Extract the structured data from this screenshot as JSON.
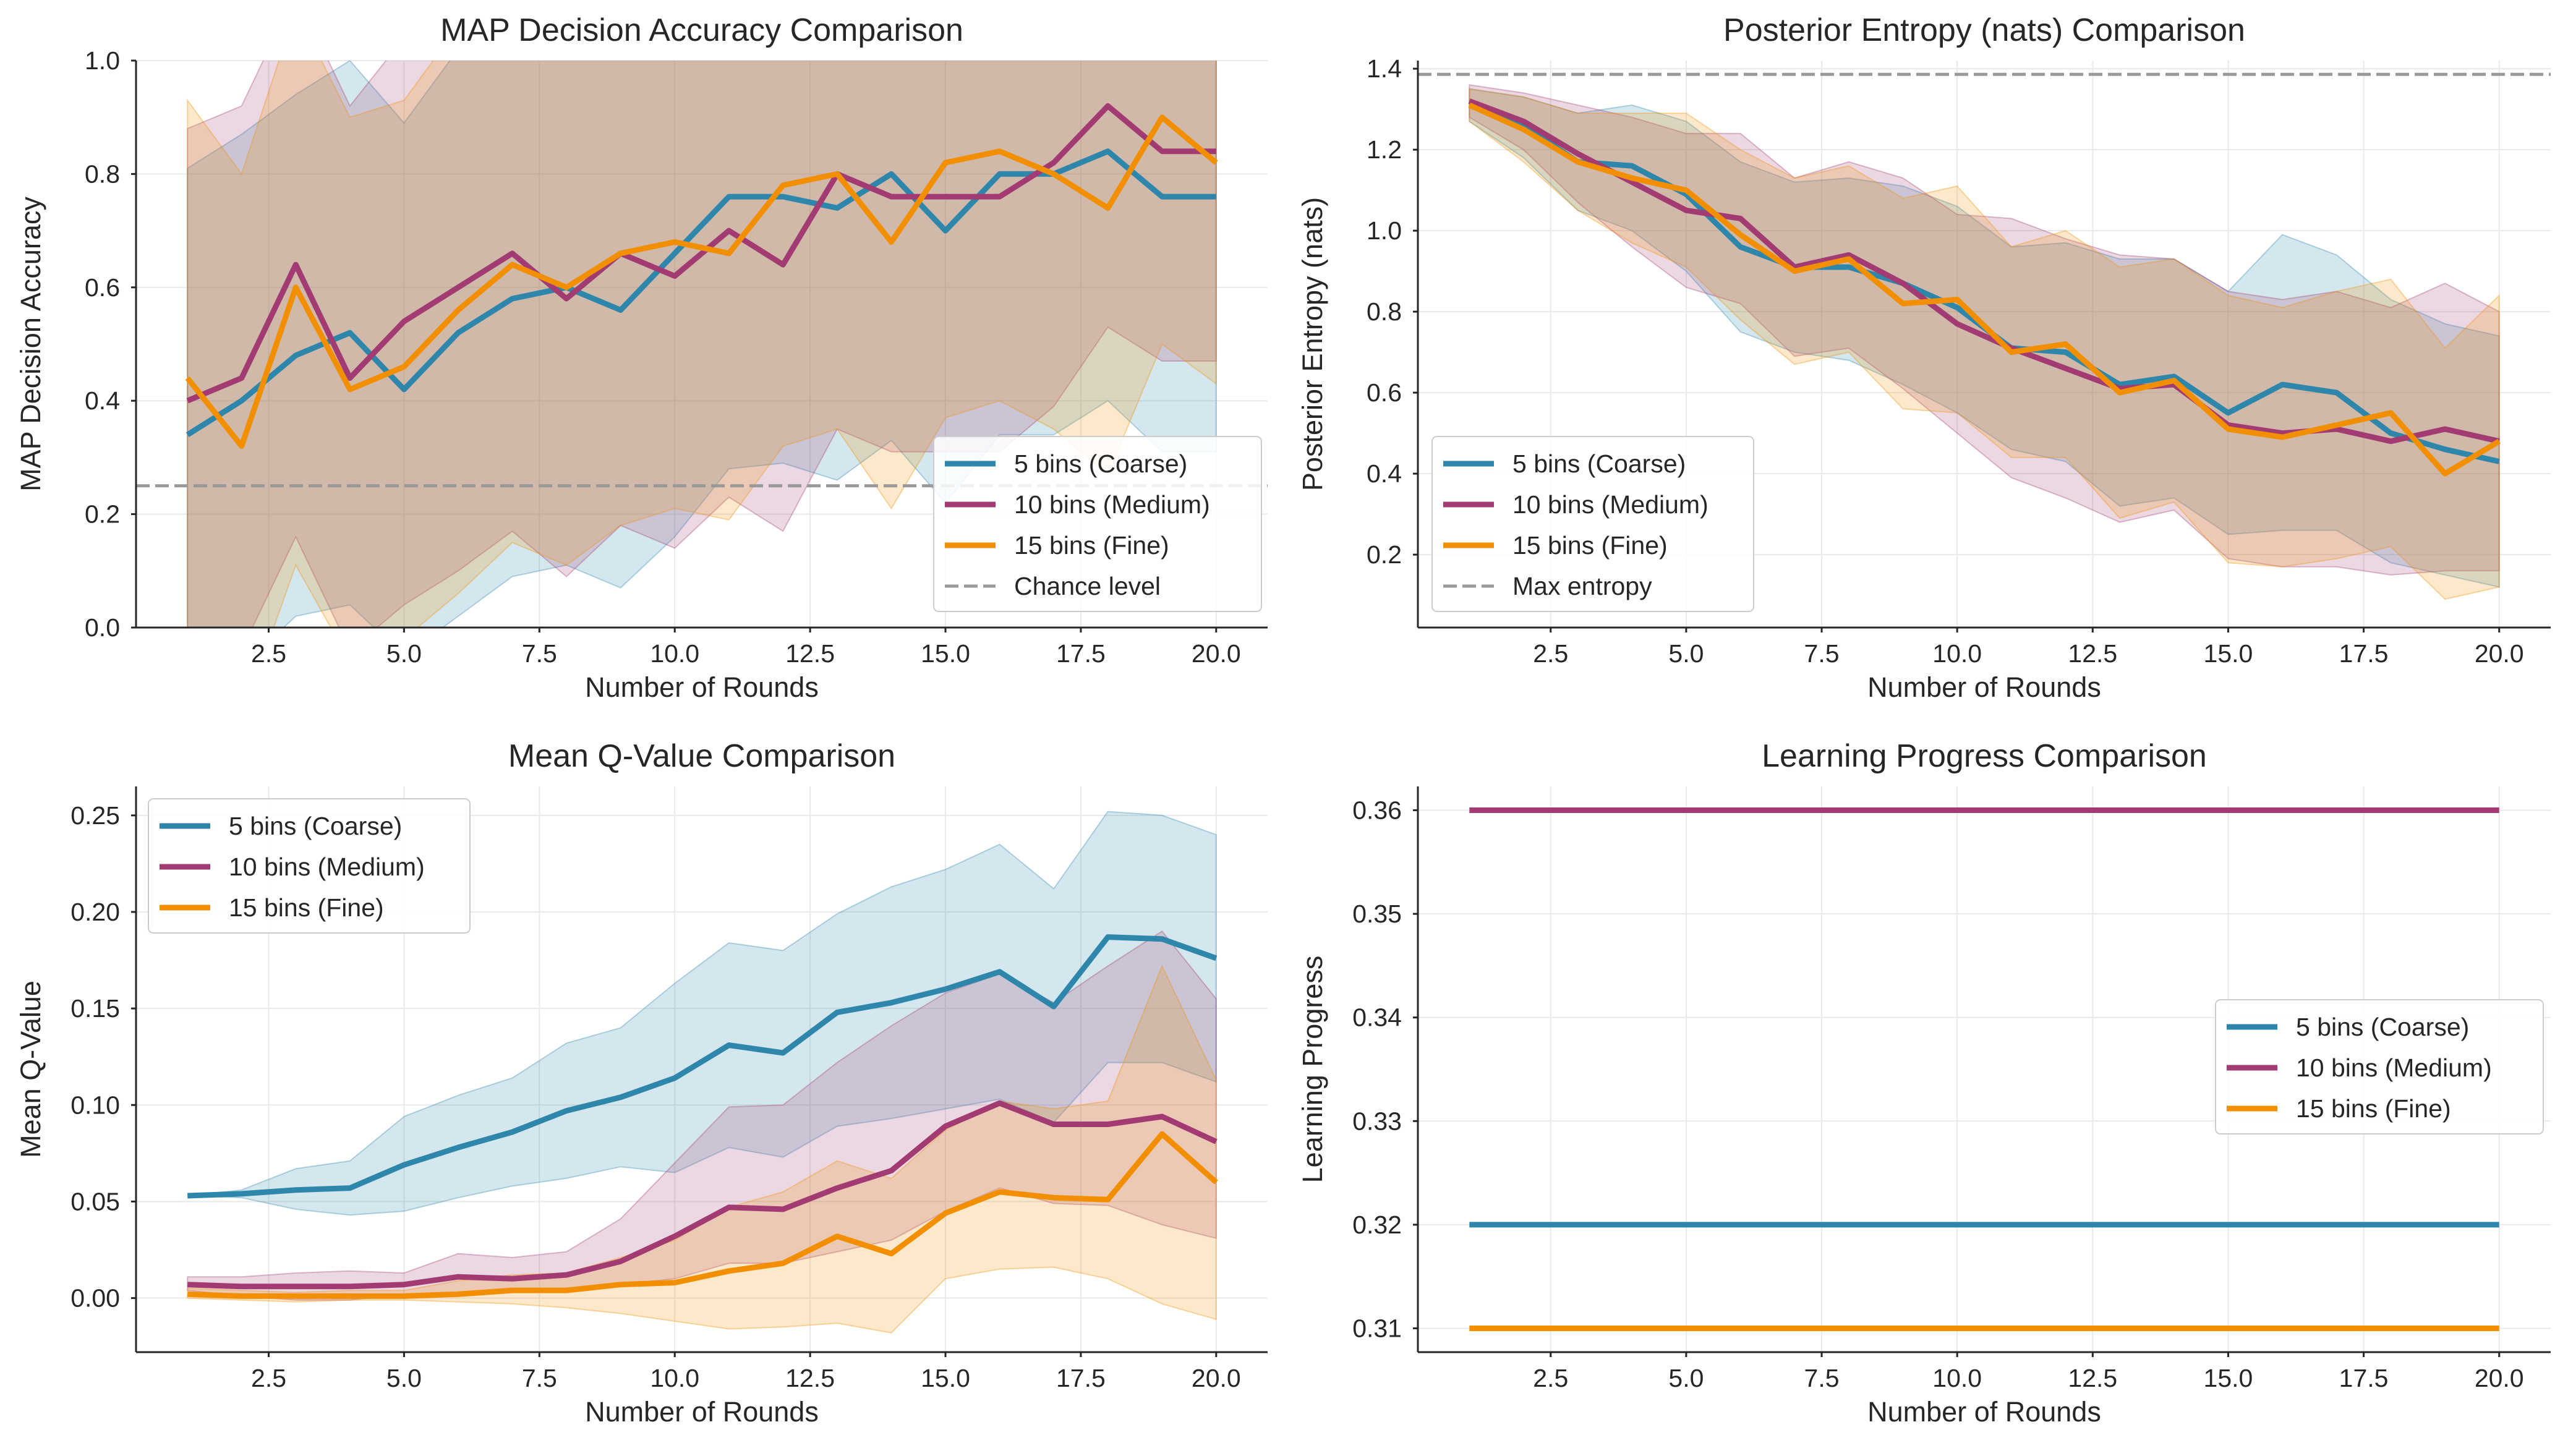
{
  "x_values": [
    1,
    2,
    3,
    4,
    5,
    6,
    7,
    8,
    9,
    10,
    11,
    12,
    13,
    14,
    15,
    16,
    17,
    18,
    19,
    20
  ],
  "series_colors": {
    "coarse": "#2e86ab",
    "medium": "#a23b72",
    "fine": "#f18f01"
  },
  "chart_data": [
    {
      "type": "line",
      "title": "MAP Decision Accuracy Comparison",
      "xlabel": "Number of Rounds",
      "ylabel": "MAP Decision Accuracy",
      "xlim": [
        0.05,
        20.95
      ],
      "ylim": [
        0.0,
        1.0
      ],
      "xticks": [
        "2.5",
        "5.0",
        "7.5",
        "10.0",
        "12.5",
        "15.0",
        "17.5",
        "20.0"
      ],
      "yticks": [
        "0.0",
        "0.2",
        "0.4",
        "0.6",
        "0.8",
        "1.0"
      ],
      "grid": true,
      "legend_position": "lower-right",
      "series": [
        {
          "name": "5 bins (Coarse)",
          "key": "coarse",
          "values": [
            0.34,
            0.4,
            0.48,
            0.52,
            0.42,
            0.52,
            0.58,
            0.6,
            0.56,
            0.66,
            0.76,
            0.76,
            0.74,
            0.8,
            0.7,
            0.8,
            0.8,
            0.84,
            0.76,
            0.76
          ],
          "lower": [
            -0.13,
            -0.07,
            0.02,
            0.04,
            -0.05,
            0.02,
            0.09,
            0.11,
            0.07,
            0.16,
            0.28,
            0.29,
            0.26,
            0.33,
            0.22,
            0.34,
            0.34,
            0.4,
            0.31,
            0.31
          ],
          "upper": [
            0.81,
            0.87,
            0.94,
            1.0,
            0.89,
            1.02,
            1.07,
            1.09,
            1.05,
            1.16,
            1.24,
            1.23,
            1.22,
            1.27,
            1.18,
            1.26,
            1.26,
            1.28,
            1.21,
            1.21
          ]
        },
        {
          "name": "10 bins (Medium)",
          "key": "medium",
          "values": [
            0.4,
            0.44,
            0.64,
            0.44,
            0.54,
            0.6,
            0.66,
            0.58,
            0.66,
            0.62,
            0.7,
            0.64,
            0.8,
            0.76,
            0.76,
            0.76,
            0.82,
            0.92,
            0.84,
            0.84
          ],
          "lower": [
            -0.08,
            -0.04,
            0.16,
            -0.04,
            0.04,
            0.1,
            0.17,
            0.09,
            0.18,
            0.14,
            0.23,
            0.17,
            0.35,
            0.31,
            0.31,
            0.31,
            0.39,
            0.53,
            0.47,
            0.47
          ],
          "upper": [
            0.88,
            0.92,
            1.12,
            0.92,
            1.04,
            1.1,
            1.15,
            1.07,
            1.14,
            1.1,
            1.17,
            1.11,
            1.25,
            1.21,
            1.21,
            1.21,
            1.25,
            1.31,
            1.21,
            1.21
          ]
        },
        {
          "name": "15 bins (Fine)",
          "key": "fine",
          "values": [
            0.44,
            0.32,
            0.6,
            0.42,
            0.46,
            0.56,
            0.64,
            0.6,
            0.66,
            0.68,
            0.66,
            0.78,
            0.8,
            0.68,
            0.82,
            0.84,
            0.8,
            0.74,
            0.9,
            0.82
          ],
          "lower": [
            -0.04,
            -0.16,
            0.11,
            -0.06,
            -0.02,
            0.06,
            0.15,
            0.11,
            0.18,
            0.21,
            0.19,
            0.32,
            0.35,
            0.21,
            0.37,
            0.4,
            0.35,
            0.27,
            0.5,
            0.43
          ],
          "upper": [
            0.93,
            0.8,
            1.09,
            0.9,
            0.93,
            1.06,
            1.13,
            1.09,
            1.14,
            1.15,
            1.13,
            1.24,
            1.25,
            1.15,
            1.27,
            1.28,
            1.25,
            1.21,
            1.3,
            1.21
          ]
        }
      ],
      "reference_line": {
        "name": "Chance level",
        "y": 0.25
      }
    },
    {
      "type": "line",
      "title": "Posterior Entropy (nats) Comparison",
      "xlabel": "Number of Rounds",
      "ylabel": "Posterior Entropy (nats)",
      "xlim": [
        0.05,
        20.95
      ],
      "ylim": [
        0.02,
        1.42
      ],
      "xticks": [
        "2.5",
        "5.0",
        "7.5",
        "10.0",
        "12.5",
        "15.0",
        "17.5",
        "20.0"
      ],
      "yticks": [
        "0.2",
        "0.4",
        "0.6",
        "0.8",
        "1.0",
        "1.2",
        "1.4"
      ],
      "grid": true,
      "legend_position": "lower-left",
      "series": [
        {
          "name": "5 bins (Coarse)",
          "key": "coarse",
          "values": [
            1.31,
            1.26,
            1.17,
            1.16,
            1.09,
            0.96,
            0.91,
            0.91,
            0.87,
            0.81,
            0.71,
            0.7,
            0.62,
            0.64,
            0.55,
            0.62,
            0.6,
            0.5,
            0.46,
            0.43
          ],
          "lower": [
            1.27,
            1.18,
            1.05,
            1.0,
            0.9,
            0.75,
            0.7,
            0.68,
            0.62,
            0.55,
            0.46,
            0.43,
            0.32,
            0.34,
            0.25,
            0.26,
            0.26,
            0.18,
            0.15,
            0.12
          ],
          "upper": [
            1.35,
            1.33,
            1.29,
            1.31,
            1.27,
            1.17,
            1.12,
            1.13,
            1.11,
            1.06,
            0.96,
            0.97,
            0.93,
            0.93,
            0.85,
            0.99,
            0.94,
            0.83,
            0.77,
            0.74
          ]
        },
        {
          "name": "10 bins (Medium)",
          "key": "medium",
          "values": [
            1.32,
            1.27,
            1.19,
            1.12,
            1.05,
            1.03,
            0.91,
            0.94,
            0.87,
            0.77,
            0.71,
            0.66,
            0.61,
            0.62,
            0.52,
            0.5,
            0.51,
            0.48,
            0.51,
            0.48
          ],
          "lower": [
            1.28,
            1.2,
            1.07,
            0.96,
            0.86,
            0.82,
            0.69,
            0.71,
            0.61,
            0.5,
            0.39,
            0.34,
            0.28,
            0.31,
            0.19,
            0.17,
            0.17,
            0.15,
            0.16,
            0.16
          ],
          "upper": [
            1.36,
            1.34,
            1.31,
            1.28,
            1.24,
            1.24,
            1.13,
            1.17,
            1.13,
            1.04,
            1.03,
            0.98,
            0.94,
            0.93,
            0.85,
            0.83,
            0.85,
            0.81,
            0.87,
            0.8
          ]
        },
        {
          "name": "15 bins (Fine)",
          "key": "fine",
          "values": [
            1.31,
            1.25,
            1.17,
            1.13,
            1.1,
            0.99,
            0.9,
            0.93,
            0.82,
            0.83,
            0.7,
            0.72,
            0.6,
            0.63,
            0.51,
            0.49,
            0.52,
            0.55,
            0.4,
            0.48
          ],
          "lower": [
            1.27,
            1.17,
            1.05,
            0.97,
            0.91,
            0.78,
            0.67,
            0.7,
            0.56,
            0.55,
            0.44,
            0.44,
            0.29,
            0.33,
            0.18,
            0.17,
            0.19,
            0.22,
            0.09,
            0.12
          ],
          "upper": [
            1.35,
            1.33,
            1.29,
            1.29,
            1.29,
            1.2,
            1.13,
            1.16,
            1.08,
            1.11,
            0.96,
            1.0,
            0.91,
            0.93,
            0.84,
            0.81,
            0.85,
            0.88,
            0.71,
            0.84
          ]
        }
      ],
      "reference_line": {
        "name": "Max entropy",
        "y": 1.386
      }
    },
    {
      "type": "line",
      "title": "Mean Q-Value Comparison",
      "xlabel": "Number of Rounds",
      "ylabel": "Mean Q-Value",
      "xlim": [
        0.05,
        20.95
      ],
      "ylim": [
        -0.028,
        0.265
      ],
      "xticks": [
        "2.5",
        "5.0",
        "7.5",
        "10.0",
        "12.5",
        "15.0",
        "17.5",
        "20.0"
      ],
      "yticks": [
        "0.00",
        "0.05",
        "0.10",
        "0.15",
        "0.20",
        "0.25"
      ],
      "grid": true,
      "legend_position": "upper-left",
      "series": [
        {
          "name": "5 bins (Coarse)",
          "key": "coarse",
          "values": [
            0.053,
            0.054,
            0.056,
            0.057,
            0.069,
            0.078,
            0.086,
            0.097,
            0.104,
            0.114,
            0.131,
            0.127,
            0.148,
            0.153,
            0.16,
            0.169,
            0.151,
            0.187,
            0.186,
            0.176
          ],
          "lower": [
            0.053,
            0.052,
            0.046,
            0.043,
            0.045,
            0.052,
            0.058,
            0.062,
            0.068,
            0.065,
            0.078,
            0.073,
            0.089,
            0.093,
            0.098,
            0.103,
            0.091,
            0.122,
            0.122,
            0.112
          ],
          "upper": [
            0.053,
            0.056,
            0.067,
            0.071,
            0.094,
            0.105,
            0.114,
            0.132,
            0.14,
            0.163,
            0.184,
            0.18,
            0.199,
            0.213,
            0.222,
            0.235,
            0.212,
            0.252,
            0.25,
            0.24
          ]
        },
        {
          "name": "10 bins (Medium)",
          "key": "medium",
          "values": [
            0.007,
            0.006,
            0.006,
            0.006,
            0.007,
            0.011,
            0.01,
            0.012,
            0.019,
            0.032,
            0.047,
            0.046,
            0.057,
            0.066,
            0.089,
            0.101,
            0.09,
            0.09,
            0.094,
            0.081
          ],
          "lower": [
            0.004,
            0.001,
            -0.001,
            -0.001,
            0.002,
            0.003,
            0.004,
            0.003,
            0.007,
            0.01,
            0.018,
            0.018,
            0.024,
            0.03,
            0.045,
            0.057,
            0.049,
            0.048,
            0.038,
            0.031
          ],
          "upper": [
            0.011,
            0.011,
            0.013,
            0.014,
            0.013,
            0.023,
            0.021,
            0.024,
            0.041,
            0.07,
            0.099,
            0.1,
            0.122,
            0.141,
            0.158,
            0.168,
            0.153,
            0.172,
            0.19,
            0.155
          ]
        },
        {
          "name": "15 bins (Fine)",
          "key": "fine",
          "values": [
            0.002,
            0.001,
            0.001,
            0.001,
            0.001,
            0.002,
            0.004,
            0.004,
            0.007,
            0.008,
            0.014,
            0.018,
            0.032,
            0.023,
            0.044,
            0.055,
            0.052,
            0.051,
            0.085,
            0.06
          ],
          "lower": [
            0.0,
            -0.001,
            -0.002,
            -0.001,
            -0.001,
            -0.002,
            -0.003,
            -0.005,
            -0.008,
            -0.012,
            -0.016,
            -0.015,
            -0.013,
            -0.018,
            0.01,
            0.015,
            0.016,
            0.01,
            -0.003,
            -0.011
          ],
          "upper": [
            0.005,
            0.004,
            0.003,
            0.004,
            0.004,
            0.009,
            0.012,
            0.013,
            0.021,
            0.03,
            0.047,
            0.055,
            0.071,
            0.062,
            0.087,
            0.102,
            0.098,
            0.102,
            0.172,
            0.113
          ]
        }
      ]
    },
    {
      "type": "line",
      "title": "Learning Progress Comparison",
      "xlabel": "Number of Rounds",
      "ylabel": "Learning Progress",
      "xlim": [
        0.05,
        20.95
      ],
      "ylim": [
        0.3077,
        0.3623
      ],
      "xticks": [
        "2.5",
        "5.0",
        "7.5",
        "10.0",
        "12.5",
        "15.0",
        "17.5",
        "20.0"
      ],
      "yticks": [
        "0.31",
        "0.32",
        "0.33",
        "0.34",
        "0.35",
        "0.36"
      ],
      "grid": true,
      "legend_position": "center-right",
      "series": [
        {
          "name": "5 bins (Coarse)",
          "key": "coarse",
          "values": [
            0.32,
            0.32,
            0.32,
            0.32,
            0.32,
            0.32,
            0.32,
            0.32,
            0.32,
            0.32,
            0.32,
            0.32,
            0.32,
            0.32,
            0.32,
            0.32,
            0.32,
            0.32,
            0.32,
            0.32
          ]
        },
        {
          "name": "10 bins (Medium)",
          "key": "medium",
          "values": [
            0.36,
            0.36,
            0.36,
            0.36,
            0.36,
            0.36,
            0.36,
            0.36,
            0.36,
            0.36,
            0.36,
            0.36,
            0.36,
            0.36,
            0.36,
            0.36,
            0.36,
            0.36,
            0.36,
            0.36
          ]
        },
        {
          "name": "15 bins (Fine)",
          "key": "fine",
          "values": [
            0.31,
            0.31,
            0.31,
            0.31,
            0.31,
            0.31,
            0.31,
            0.31,
            0.31,
            0.31,
            0.31,
            0.31,
            0.31,
            0.31,
            0.31,
            0.31,
            0.31,
            0.31,
            0.31,
            0.31
          ]
        }
      ]
    }
  ]
}
